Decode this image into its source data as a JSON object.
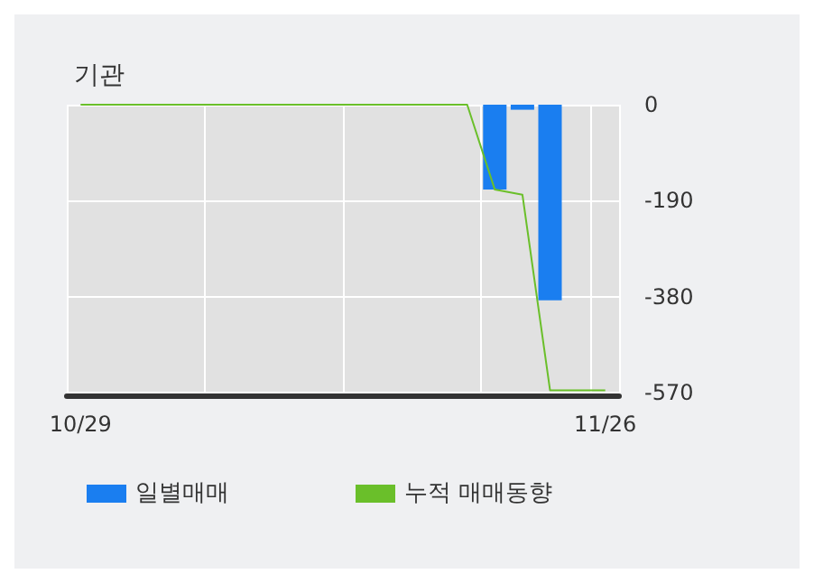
{
  "chart_data": {
    "type": "bar",
    "title": "기관",
    "categories": [
      "10/29",
      null,
      null,
      null,
      null,
      null,
      null,
      null,
      null,
      null,
      null,
      null,
      null,
      null,
      null,
      null,
      null,
      null,
      null,
      "11/26"
    ],
    "series": [
      {
        "name": "일별매매",
        "color": "#1a7ef0",
        "values": [
          null,
          null,
          null,
          null,
          null,
          null,
          null,
          null,
          null,
          null,
          null,
          null,
          null,
          null,
          null,
          -168,
          -10,
          -387,
          null,
          null
        ]
      },
      {
        "name": "누적 매매동향",
        "type": "line",
        "color": "#6abf2a",
        "values": [
          0,
          0,
          0,
          0,
          0,
          0,
          0,
          0,
          0,
          0,
          0,
          0,
          0,
          0,
          0,
          -168,
          -178,
          -565,
          -565,
          -565
        ]
      }
    ],
    "ylim": [
      -575,
      0
    ],
    "yticks": [
      0,
      -190,
      -380,
      -570
    ],
    "grid": true,
    "legend": "bottom",
    "marker": "none"
  }
}
